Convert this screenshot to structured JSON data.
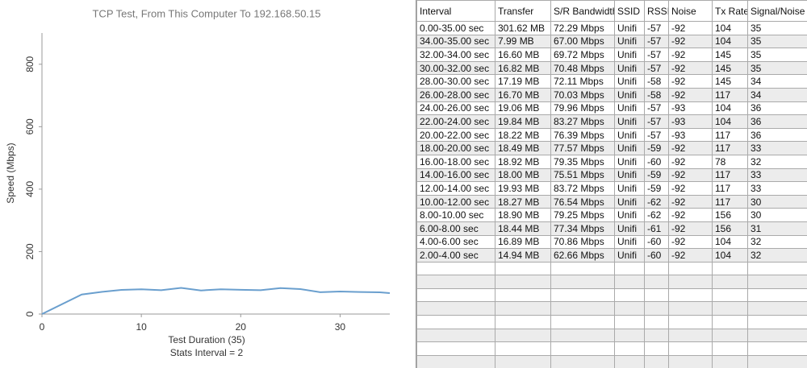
{
  "chart_data": {
    "type": "line",
    "title": "TCP Test,  From This Computer To 192.168.50.15",
    "x_label": "Test Duration (35)",
    "x_sublabel": "Stats Interval = 2",
    "y_label": "Speed (Mbps)",
    "x": [
      0,
      4,
      6,
      8,
      10,
      12,
      14,
      16,
      18,
      20,
      22,
      24,
      26,
      28,
      30,
      32,
      34,
      35
    ],
    "series": [
      {
        "color": "#6a9fce",
        "values": [
          0,
          62.66,
          70.86,
          77.34,
          79.25,
          76.54,
          83.72,
          75.51,
          79.35,
          77.57,
          76.39,
          83.27,
          79.96,
          70.03,
          72.11,
          70.48,
          69.72,
          67.0
        ]
      }
    ],
    "xlim": [
      0,
      35
    ],
    "xticks": [
      0,
      10,
      20,
      30
    ],
    "ylim": [
      0,
      900
    ],
    "yticks": [
      0,
      200,
      400,
      600,
      800
    ]
  },
  "table": {
    "headers": [
      "Interval",
      "Transfer",
      "S/R Bandwidth",
      "SSID",
      "RSSI",
      "Noise",
      "Tx Rate",
      "Signal/Noise"
    ],
    "rows": [
      [
        "0.00-35.00 sec",
        "301.62 MB",
        "72.29 Mbps",
        "Unifi",
        "-57",
        "-92",
        "104",
        "35"
      ],
      [
        "34.00-35.00 sec",
        "7.99 MB",
        "67.00 Mbps",
        "Unifi",
        "-57",
        "-92",
        "104",
        "35"
      ],
      [
        "32.00-34.00 sec",
        "16.60 MB",
        "69.72 Mbps",
        "Unifi",
        "-57",
        "-92",
        "145",
        "35"
      ],
      [
        "30.00-32.00 sec",
        "16.82 MB",
        "70.48 Mbps",
        "Unifi",
        "-57",
        "-92",
        "145",
        "35"
      ],
      [
        "28.00-30.00 sec",
        "17.19 MB",
        "72.11 Mbps",
        "Unifi",
        "-58",
        "-92",
        "145",
        "34"
      ],
      [
        "26.00-28.00 sec",
        "16.70 MB",
        "70.03 Mbps",
        "Unifi",
        "-58",
        "-92",
        "117",
        "34"
      ],
      [
        "24.00-26.00 sec",
        "19.06 MB",
        "79.96 Mbps",
        "Unifi",
        "-57",
        "-93",
        "104",
        "36"
      ],
      [
        "22.00-24.00 sec",
        "19.84 MB",
        "83.27 Mbps",
        "Unifi",
        "-57",
        "-93",
        "104",
        "36"
      ],
      [
        "20.00-22.00 sec",
        "18.22 MB",
        "76.39 Mbps",
        "Unifi",
        "-57",
        "-93",
        "117",
        "36"
      ],
      [
        "18.00-20.00 sec",
        "18.49 MB",
        "77.57 Mbps",
        "Unifi",
        "-59",
        "-92",
        "117",
        "33"
      ],
      [
        "16.00-18.00 sec",
        "18.92 MB",
        "79.35 Mbps",
        "Unifi",
        "-60",
        "-92",
        "78",
        "32"
      ],
      [
        "14.00-16.00 sec",
        "18.00 MB",
        "75.51 Mbps",
        "Unifi",
        "-59",
        "-92",
        "117",
        "33"
      ],
      [
        "12.00-14.00 sec",
        "19.93 MB",
        "83.72 Mbps",
        "Unifi",
        "-59",
        "-92",
        "117",
        "33"
      ],
      [
        "10.00-12.00 sec",
        "18.27 MB",
        "76.54 Mbps",
        "Unifi",
        "-62",
        "-92",
        "117",
        "30"
      ],
      [
        "8.00-10.00 sec",
        "18.90 MB",
        "79.25 Mbps",
        "Unifi",
        "-62",
        "-92",
        "156",
        "30"
      ],
      [
        "6.00-8.00 sec",
        "18.44 MB",
        "77.34 Mbps",
        "Unifi",
        "-61",
        "-92",
        "156",
        "31"
      ],
      [
        "4.00-6.00 sec",
        "16.89 MB",
        "70.86 Mbps",
        "Unifi",
        "-60",
        "-92",
        "104",
        "32"
      ],
      [
        "2.00-4.00 sec",
        "14.94 MB",
        "62.66 Mbps",
        "Unifi",
        "-60",
        "-92",
        "104",
        "32"
      ]
    ]
  }
}
